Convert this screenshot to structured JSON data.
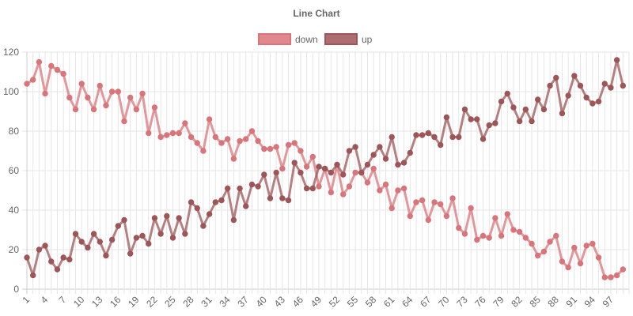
{
  "chart_data": {
    "type": "line",
    "title": "Line Chart",
    "x": [
      1,
      2,
      3,
      4,
      5,
      6,
      7,
      8,
      9,
      10,
      11,
      12,
      13,
      14,
      15,
      16,
      17,
      18,
      19,
      20,
      21,
      22,
      23,
      24,
      25,
      26,
      27,
      28,
      29,
      30,
      31,
      32,
      33,
      34,
      35,
      36,
      37,
      38,
      39,
      40,
      41,
      42,
      43,
      44,
      45,
      46,
      47,
      48,
      49,
      50,
      51,
      52,
      53,
      54,
      55,
      56,
      57,
      58,
      59,
      60,
      61,
      62,
      63,
      64,
      65,
      66,
      67,
      68,
      69,
      70,
      71,
      72,
      73,
      74,
      75,
      76,
      77,
      78,
      79,
      80,
      81,
      82,
      83,
      84,
      85,
      86,
      87,
      88,
      89,
      90,
      91,
      92,
      93,
      94,
      95,
      96,
      97,
      98,
      99,
      100
    ],
    "x_tick_labels": [
      "1",
      "4",
      "7",
      "10",
      "13",
      "16",
      "19",
      "22",
      "25",
      "28",
      "31",
      "34",
      "37",
      "40",
      "43",
      "46",
      "49",
      "52",
      "55",
      "58",
      "61",
      "64",
      "67",
      "70",
      "73",
      "76",
      "79",
      "82",
      "85",
      "88",
      "91",
      "94",
      "97"
    ],
    "ylim": [
      0,
      120
    ],
    "y_ticks": [
      0,
      20,
      40,
      60,
      80,
      100,
      120
    ],
    "legend_position": "top-center",
    "grid": true,
    "series": [
      {
        "name": "down",
        "color": "#d9747a",
        "values": [
          104,
          106,
          115,
          99,
          113,
          111,
          109,
          97,
          91,
          104,
          97,
          91,
          103,
          93,
          100,
          100,
          85,
          97,
          91,
          99,
          79,
          92,
          77,
          78,
          79,
          79,
          84,
          77,
          74,
          70,
          86,
          77,
          74,
          76,
          66,
          75,
          76,
          80,
          75,
          71,
          71,
          72,
          61,
          73,
          74,
          70,
          62,
          67,
          52,
          61,
          49,
          63,
          48,
          52,
          59,
          59,
          54,
          61,
          50,
          53,
          41,
          50,
          51,
          37,
          44,
          45,
          35,
          44,
          43,
          37,
          46,
          31,
          28,
          41,
          25,
          27,
          26,
          36,
          27,
          38,
          30,
          29,
          26,
          23,
          17,
          19,
          24,
          27,
          14,
          11,
          21,
          13,
          22,
          23,
          16,
          6,
          6,
          7,
          10,
          null
        ]
      },
      {
        "name": "up",
        "color": "#9e5558",
        "values": [
          16,
          7,
          20,
          22,
          14,
          10,
          16,
          15,
          28,
          24,
          21,
          28,
          24,
          17,
          25,
          32,
          35,
          18,
          26,
          27,
          23,
          36,
          28,
          37,
          26,
          36,
          28,
          44,
          41,
          32,
          38,
          44,
          45,
          51,
          35,
          51,
          42,
          53,
          52,
          58,
          46,
          59,
          46,
          45,
          64,
          59,
          51,
          51,
          62,
          61,
          59,
          63,
          58,
          70,
          72,
          59,
          63,
          68,
          72,
          66,
          77,
          63,
          64,
          69,
          78,
          78,
          79,
          77,
          73,
          87,
          77,
          77,
          91,
          86,
          86,
          76,
          83,
          84,
          95,
          99,
          92,
          85,
          91,
          85,
          96,
          91,
          103,
          107,
          89,
          98,
          108,
          103,
          97,
          94,
          95,
          104,
          102,
          116,
          103,
          null
        ]
      }
    ]
  }
}
